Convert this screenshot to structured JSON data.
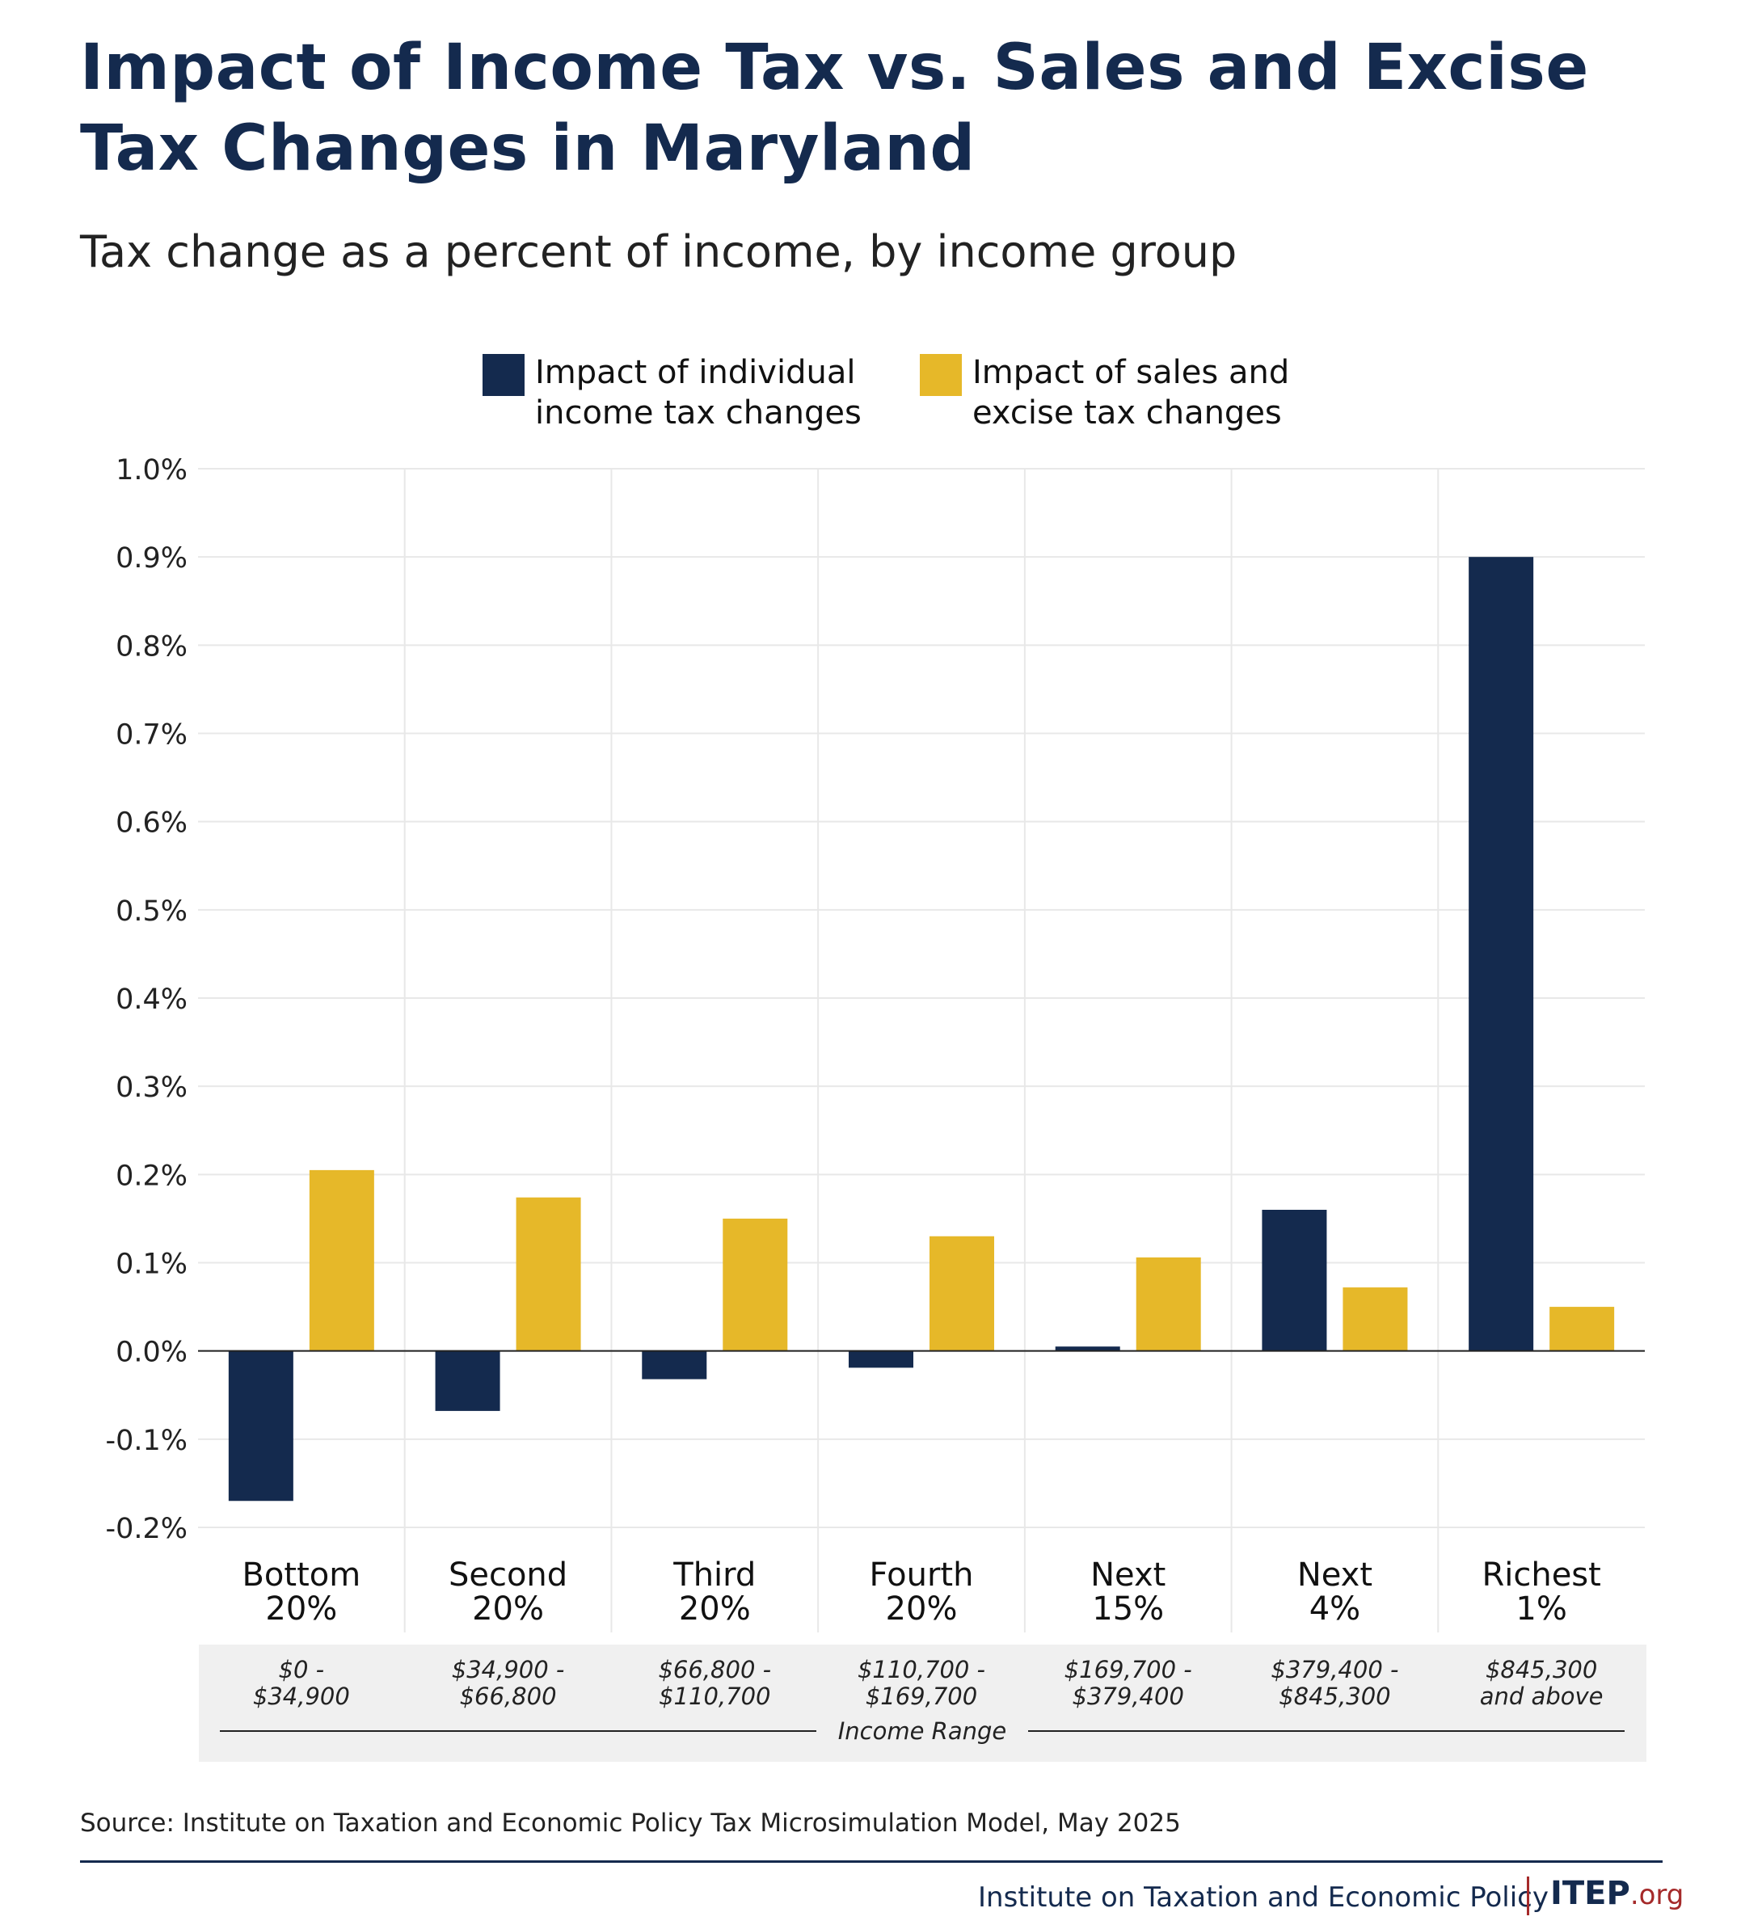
{
  "title": "Impact of Income Tax vs. Sales and Excise Tax Changes in Maryland",
  "subtitle": "Tax change as a percent of income, by income group",
  "legend": [
    {
      "label": "Impact of individual\nincome tax changes",
      "color": "#142a4e"
    },
    {
      "label": "Impact of sales and\nexcise tax changes",
      "color": "#e6b829"
    }
  ],
  "chart_data": {
    "type": "bar",
    "categories": [
      "Bottom\n20%",
      "Second\n20%",
      "Third\n20%",
      "Fourth\n20%",
      "Next\n15%",
      "Next\n4%",
      "Richest\n1%"
    ],
    "income_ranges": [
      "$0 -\n$34,900",
      "$34,900 -\n$66,800",
      "$66,800 -\n$110,700",
      "$110,700 -\n$169,700",
      "$169,700 -\n$379,400",
      "$379,400 -\n$845,300",
      "$845,300\nand above"
    ],
    "income_range_label": "Income Range",
    "series": [
      {
        "name": "Impact of individual income tax changes",
        "color": "#142a4e",
        "values": [
          -0.17,
          -0.068,
          -0.032,
          -0.019,
          0.005,
          0.16,
          0.9
        ]
      },
      {
        "name": "Impact of sales and excise tax changes",
        "color": "#e6b829",
        "values": [
          0.205,
          0.174,
          0.15,
          0.13,
          0.106,
          0.072,
          0.05
        ]
      }
    ],
    "ylim": [
      -0.2,
      1.0
    ],
    "yticks": [
      -0.2,
      -0.1,
      0.0,
      0.1,
      0.2,
      0.3,
      0.4,
      0.5,
      0.6,
      0.7,
      0.8,
      0.9,
      1.0
    ],
    "ytick_labels": [
      "-0.2%",
      "-0.1%",
      "0.0%",
      "0.1%",
      "0.2%",
      "0.3%",
      "0.4%",
      "0.5%",
      "0.6%",
      "0.7%",
      "0.8%",
      "0.9%",
      "1.0%"
    ],
    "grid": true,
    "legend_position": "top-center"
  },
  "source": "Source: Institute on Taxation and Economic Policy Tax Microsimulation Model, May 2025",
  "footer": {
    "org": "Institute on Taxation and Economic Policy",
    "logo_main": "ITEP",
    "logo_suffix": ".org"
  }
}
